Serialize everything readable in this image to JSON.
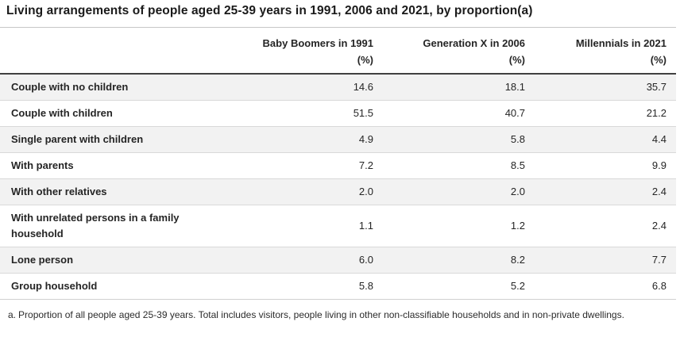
{
  "title": "Living arrangements of people aged 25-39 years in 1991, 2006 and 2021, by proportion(a)",
  "table": {
    "columns": [
      {
        "label": "Baby Boomers in 1991",
        "unit": "(%)"
      },
      {
        "label": "Generation X in 2006",
        "unit": "(%)"
      },
      {
        "label": "Millennials in 2021",
        "unit": "(%)"
      }
    ],
    "rows": [
      {
        "label": "Couple with no children",
        "values": [
          "14.6",
          "18.1",
          "35.7"
        ]
      },
      {
        "label": "Couple with children",
        "values": [
          "51.5",
          "40.7",
          "21.2"
        ]
      },
      {
        "label": "Single parent with children",
        "values": [
          "4.9",
          "5.8",
          "4.4"
        ]
      },
      {
        "label": "With parents",
        "values": [
          "7.2",
          "8.5",
          "9.9"
        ]
      },
      {
        "label": "With other relatives",
        "values": [
          "2.0",
          "2.0",
          "2.4"
        ]
      },
      {
        "label": "With unrelated persons in a family household",
        "values": [
          "1.1",
          "1.2",
          "2.4"
        ]
      },
      {
        "label": "Lone person",
        "values": [
          "6.0",
          "8.2",
          "7.7"
        ]
      },
      {
        "label": "Group household",
        "values": [
          "5.8",
          "5.2",
          "6.8"
        ]
      }
    ]
  },
  "footnote": {
    "marker": "a.",
    "text": "Proportion of all people aged 25-39 years. Total includes visitors, people living in other non-classifiable households and in non-private dwellings."
  },
  "chart_data": {
    "type": "table",
    "title": "Living arrangements of people aged 25-39 years in 1991, 2006 and 2021, by proportion(a)",
    "categories": [
      "Couple with no children",
      "Couple with children",
      "Single parent with children",
      "With parents",
      "With other relatives",
      "With unrelated persons in a family household",
      "Lone person",
      "Group household"
    ],
    "series": [
      {
        "name": "Baby Boomers in 1991 (%)",
        "values": [
          14.6,
          51.5,
          4.9,
          7.2,
          2.0,
          1.1,
          6.0,
          5.8
        ]
      },
      {
        "name": "Generation X in 2006 (%)",
        "values": [
          18.1,
          40.7,
          5.8,
          8.5,
          2.0,
          1.2,
          8.2,
          5.2
        ]
      },
      {
        "name": "Millennials in 2021 (%)",
        "values": [
          35.7,
          21.2,
          4.4,
          9.9,
          2.4,
          2.4,
          7.7,
          6.8
        ]
      }
    ],
    "footnote": "a. Proportion of all people aged 25-39 years. Total includes visitors, people living in other non-classifiable households and in non-private dwellings."
  },
  "style": {
    "stripe_color": "#f2f2f2",
    "divider_color": "#d9d9d9",
    "header_rule_color": "#414141",
    "text_color": "#252525"
  }
}
